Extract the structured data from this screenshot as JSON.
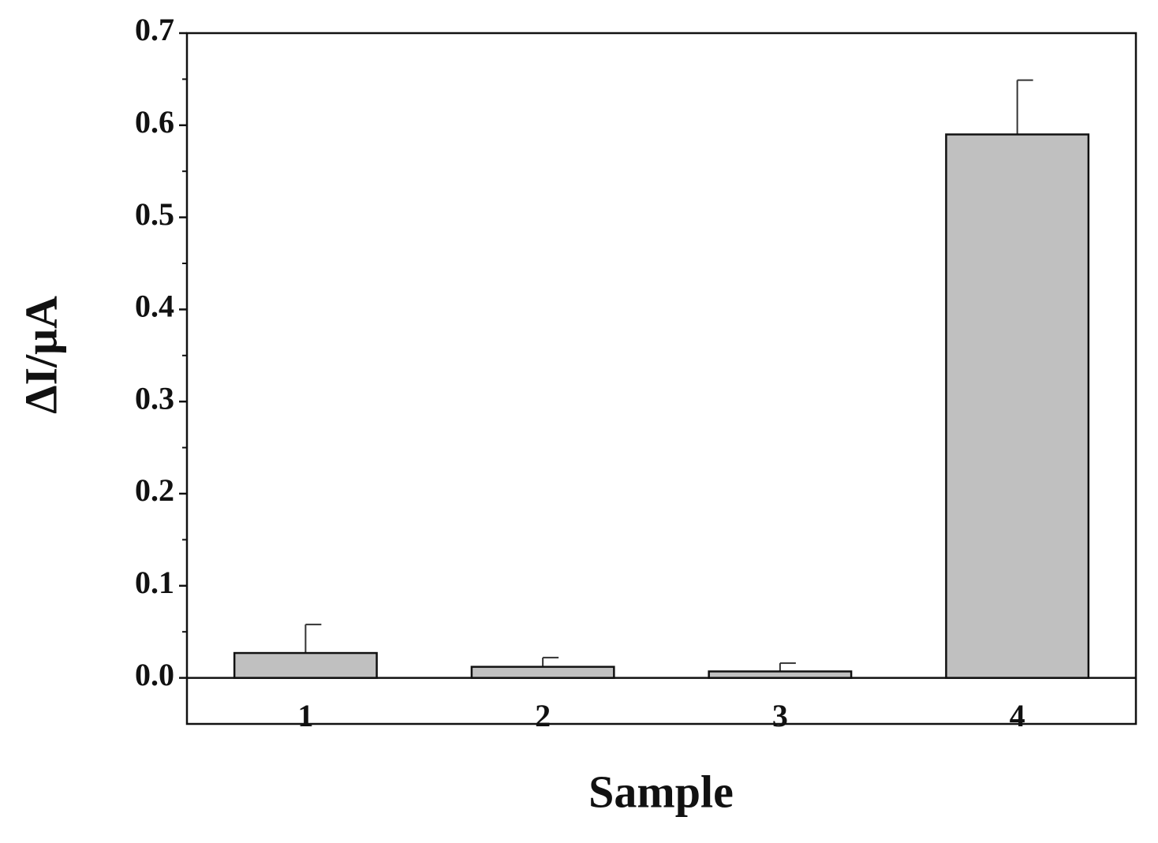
{
  "chart_data": {
    "type": "bar",
    "x_label": "Sample",
    "y_label": "ΔI/μA",
    "categories": [
      "1",
      "2",
      "3",
      "4"
    ],
    "values": [
      0.027,
      0.012,
      0.007,
      0.59
    ],
    "errors": [
      0.031,
      0.01,
      0.009,
      0.059
    ],
    "color": "#c0c0c0",
    "ylim": [
      -0.05,
      0.7
    ],
    "yticks": [
      {
        "value": 0,
        "label": "0.0"
      },
      0.1,
      0.2,
      0.3,
      0.4,
      0.5,
      0.6,
      0.7
    ],
    "grid": false
  }
}
